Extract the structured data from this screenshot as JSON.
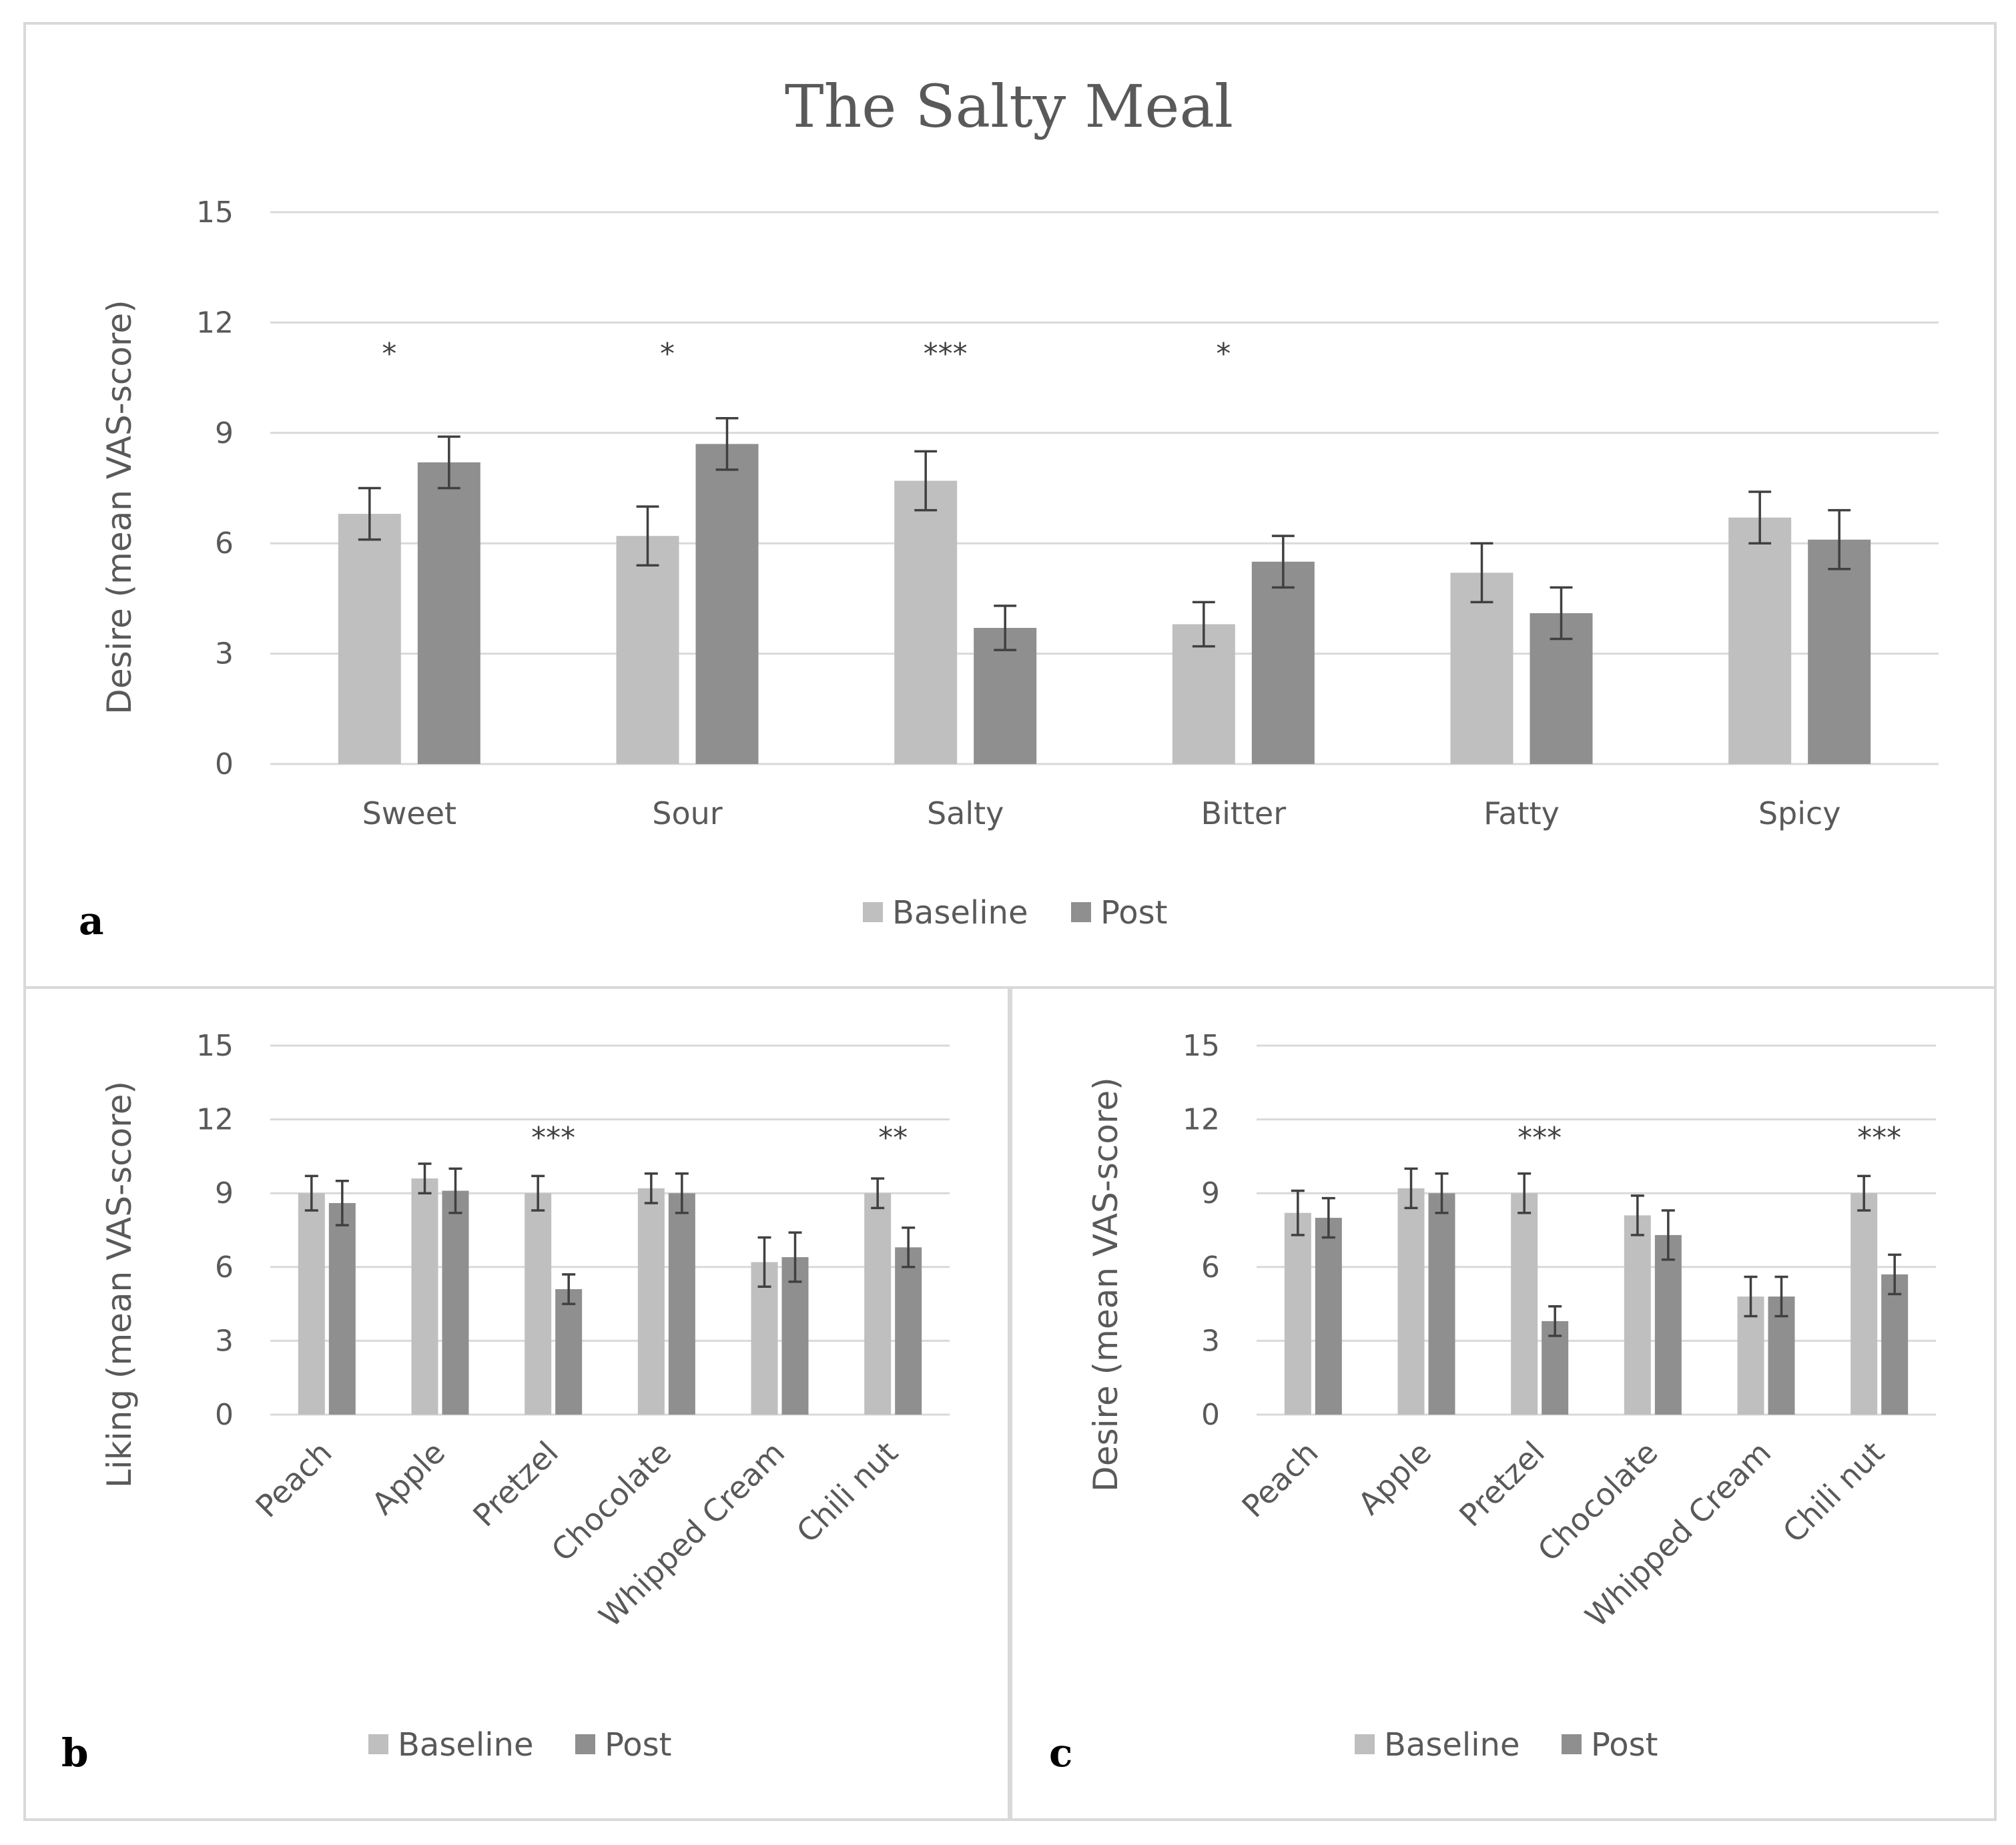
{
  "colors": {
    "baseline": "#bfbfbf",
    "post": "#8f8f8f",
    "grid": "#d9d9d9",
    "border": "#d9d9d9",
    "text": "#595959",
    "error": "#404040"
  },
  "chart_data": [
    {
      "panel": "a",
      "type": "bar",
      "title": "The Salty Meal",
      "ylabel": "Desire (mean VAS-score)",
      "xlabel": "",
      "ylim": [
        0,
        15
      ],
      "yticks": [
        0,
        3,
        6,
        9,
        12,
        15
      ],
      "grid": true,
      "legend": "bottom",
      "categories": [
        "Sweet",
        "Sour",
        "Salty",
        "Bitter",
        "Fatty",
        "Spicy"
      ],
      "series": [
        {
          "name": "Baseline",
          "values": [
            6.8,
            6.2,
            7.7,
            3.8,
            5.2,
            6.7
          ],
          "errors": [
            0.7,
            0.8,
            0.8,
            0.6,
            0.8,
            0.7
          ]
        },
        {
          "name": "Post",
          "values": [
            8.2,
            8.7,
            3.7,
            5.5,
            4.1,
            6.1
          ],
          "errors": [
            0.7,
            0.7,
            0.6,
            0.7,
            0.7,
            0.8
          ]
        }
      ],
      "significance": [
        "*",
        "*",
        "***",
        "*",
        "",
        ""
      ]
    },
    {
      "panel": "b",
      "type": "bar",
      "title": "",
      "ylabel": "Liking (mean VAS-score)",
      "xlabel": "",
      "ylim": [
        0,
        15
      ],
      "yticks": [
        0,
        3,
        6,
        9,
        12,
        15
      ],
      "grid": true,
      "legend": "bottom",
      "categories": [
        "Peach",
        "Apple",
        "Pretzel",
        "Chocolate",
        "Whipped Cream",
        "Chili nut"
      ],
      "series": [
        {
          "name": "Baseline",
          "values": [
            9.0,
            9.6,
            9.0,
            9.2,
            6.2,
            9.0
          ],
          "errors": [
            0.7,
            0.6,
            0.7,
            0.6,
            1.0,
            0.6
          ]
        },
        {
          "name": "Post",
          "values": [
            8.6,
            9.1,
            5.1,
            9.0,
            6.4,
            6.8
          ],
          "errors": [
            0.9,
            0.9,
            0.6,
            0.8,
            1.0,
            0.8
          ]
        }
      ],
      "significance": [
        "",
        "",
        "***",
        "",
        "",
        "**"
      ]
    },
    {
      "panel": "c",
      "type": "bar",
      "title": "",
      "ylabel": "Desire (mean VAS-score)",
      "xlabel": "",
      "ylim": [
        0,
        15
      ],
      "yticks": [
        0,
        3,
        6,
        9,
        12,
        15
      ],
      "grid": true,
      "legend": "bottom",
      "categories": [
        "Peach",
        "Apple",
        "Pretzel",
        "Chocolate",
        "Whipped Cream",
        "Chili nut"
      ],
      "series": [
        {
          "name": "Baseline",
          "values": [
            8.2,
            9.2,
            9.0,
            8.1,
            4.8,
            9.0
          ],
          "errors": [
            0.9,
            0.8,
            0.8,
            0.8,
            0.8,
            0.7
          ]
        },
        {
          "name": "Post",
          "values": [
            8.0,
            9.0,
            3.8,
            7.3,
            4.8,
            5.7
          ],
          "errors": [
            0.8,
            0.8,
            0.6,
            1.0,
            0.8,
            0.8
          ]
        }
      ],
      "significance": [
        "",
        "",
        "***",
        "",
        "",
        "***"
      ]
    }
  ]
}
